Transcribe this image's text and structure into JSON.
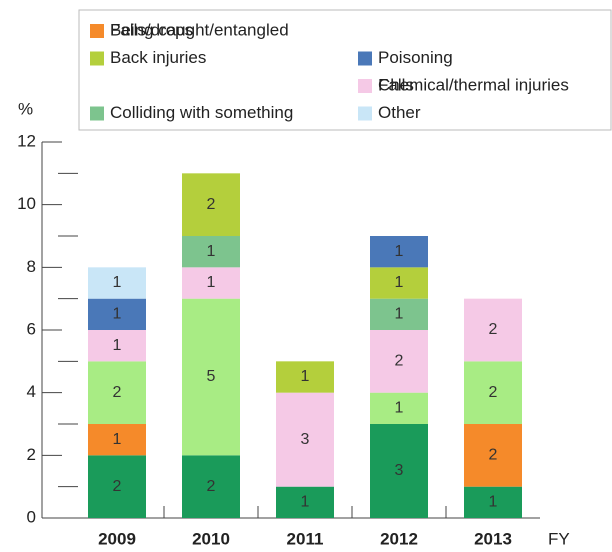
{
  "chart_data": {
    "type": "bar",
    "stacked": true,
    "categories": [
      "2009",
      "2010",
      "2011",
      "2012",
      "2013"
    ],
    "series": [
      {
        "name": "Being caught/entangled",
        "color": "#1a9b5a",
        "values": [
          2,
          2,
          1,
          3,
          1
        ]
      },
      {
        "name": "Falls/drops",
        "color": "#f58a2a",
        "values": [
          1,
          0,
          0,
          0,
          2
        ]
      },
      {
        "name": "Falls",
        "color": "#a8ec84",
        "values": [
          2,
          5,
          0,
          1,
          2
        ]
      },
      {
        "name": "Chemical/thermal injuries",
        "color": "#f5c9e6",
        "values": [
          1,
          1,
          3,
          2,
          2
        ]
      },
      {
        "name": "Colliding with something",
        "color": "#7dc48e",
        "values": [
          0,
          1,
          0,
          1,
          0
        ]
      },
      {
        "name": "Back injuries",
        "color": "#b4cf3c",
        "values": [
          0,
          2,
          1,
          1,
          0
        ]
      },
      {
        "name": "Poisoning",
        "color": "#4a78b8",
        "values": [
          1,
          0,
          0,
          1,
          0
        ]
      },
      {
        "name": "Other",
        "color": "#c9e6f7",
        "values": [
          1,
          0,
          0,
          0,
          0
        ]
      }
    ],
    "y_label": "%",
    "x_label": "FY",
    "ylim": [
      0,
      12
    ],
    "yticks": [
      0,
      2,
      4,
      6,
      8,
      10,
      12
    ]
  }
}
